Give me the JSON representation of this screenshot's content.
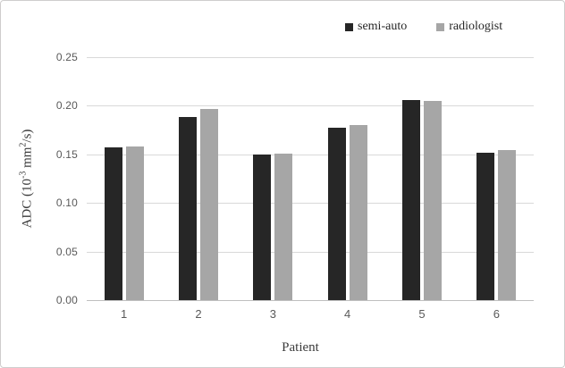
{
  "chart_data": {
    "type": "bar",
    "title": "",
    "categories": [
      "1",
      "2",
      "3",
      "4",
      "5",
      "6"
    ],
    "series": [
      {
        "name": "semi-auto",
        "color": "#262626",
        "values": [
          0.157,
          0.188,
          0.15,
          0.177,
          0.206,
          0.152
        ]
      },
      {
        "name": "radiologist",
        "color": "#a6a6a6",
        "values": [
          0.158,
          0.197,
          0.151,
          0.18,
          0.205,
          0.154
        ]
      }
    ],
    "xlabel": "Patient",
    "ylabel_parts": {
      "pre": "ADC (10",
      "sup1": "-3",
      "mid": " mm",
      "sup2": "2",
      "post": "/s)"
    },
    "ylim": [
      0,
      0.25
    ],
    "yticks": [
      0,
      0.05,
      0.1,
      0.15,
      0.2,
      0.25
    ],
    "ytick_labels": [
      "0.00",
      "0.05",
      "0.10",
      "0.15",
      "0.20",
      "0.25"
    ],
    "grid": true,
    "legend_position": "top-right"
  },
  "colors": {
    "gridline": "#d9d9d9",
    "axis_line": "#bfbfbf",
    "tick_text": "#595959",
    "title_text": "#3b3b3b"
  }
}
